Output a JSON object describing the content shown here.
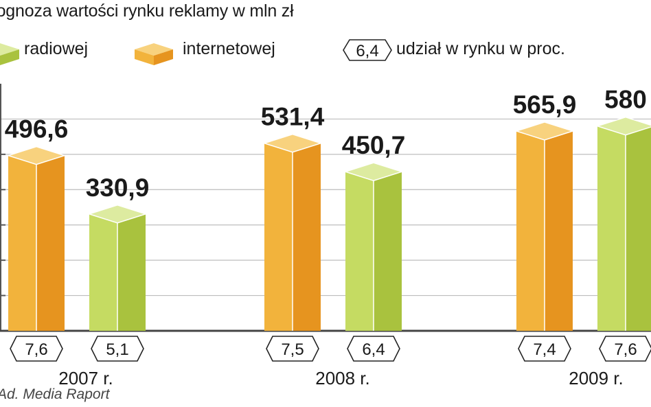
{
  "title": "Prognoza wartości rynku reklamy w mln zł",
  "legend": {
    "radio": "radiowej",
    "internet": "internetowej",
    "share_sample": "6,4",
    "share_label": "udział w rynku w proc."
  },
  "source": "Ad. Media Raport",
  "colors": {
    "internet_front": "#F2B33C",
    "internet_side": "#E6941F",
    "internet_top": "#F8D27E",
    "radio_front": "#C5DB62",
    "radio_side": "#A9C23E",
    "radio_top": "#DDEBA0",
    "grid": "#bdbdbd",
    "axis": "#555555"
  },
  "chart_data": {
    "type": "bar",
    "title": "Prognoza wartości rynku reklamy w mln zł",
    "categories": [
      "2007 r.",
      "2008 r.",
      "2009 r."
    ],
    "series": [
      {
        "name": "internetowej",
        "values": [
          496.6,
          531.4,
          565.9
        ],
        "value_labels": [
          "496,6",
          "531,4",
          "565,9"
        ],
        "share": [
          "7,6",
          "7,5",
          "7,4"
        ]
      },
      {
        "name": "radiowej",
        "values": [
          330.9,
          450.7,
          580.0
        ],
        "value_labels": [
          "330,9",
          "450,7",
          "580"
        ],
        "share": [
          "5,1",
          "6,4",
          "7,6"
        ]
      }
    ],
    "ylim": [
      0,
      700
    ],
    "grid": true,
    "legend_position": "top"
  }
}
